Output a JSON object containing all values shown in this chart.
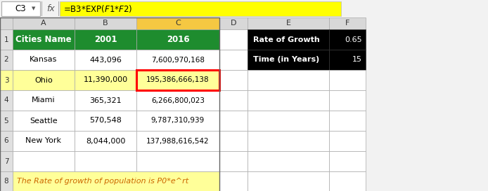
{
  "formula_bar_text": "=B3*EXP($F$1*$F$2)",
  "cell_ref": "C3",
  "table_headers": [
    "Cities Name",
    "2001",
    "2016"
  ],
  "table_data": [
    [
      "Kansas",
      "443,096",
      "7,600,970,168"
    ],
    [
      "Ohio",
      "11,390,000",
      "195,386,666,138"
    ],
    [
      "Miami",
      "365,321",
      "6,266,800,023"
    ],
    [
      "Seattle",
      "570,548",
      "9,787,310,939"
    ],
    [
      "New York",
      "8,044,000",
      "137,988,616,542"
    ]
  ],
  "side_labels": [
    "Rate of Growth",
    "Time (in Years)"
  ],
  "side_values": [
    "0.65",
    "15"
  ],
  "note_text": "The Rate of growth of population is P0*e^rt",
  "header_bg_green": "#1e8c2e",
  "header_text_white": "#ffffff",
  "side_box_bg": "#000000",
  "side_box_text": "#ffffff",
  "note_bg": "#ffff99",
  "note_text_color": "#cc6600",
  "col_c_header_bg": "#f5c842",
  "row3_highlight_bg": "#ffff99",
  "formula_bar_bg": "#ffff00",
  "grid_color": "#c0c0c0",
  "header_row_bg": "#d8d8d8",
  "fig_bg": "#f2f2f2",
  "cell_bg_white": "#ffffff",
  "row_num_bg": "#e0e0e0",
  "row3_num_bg": "#ffff99"
}
